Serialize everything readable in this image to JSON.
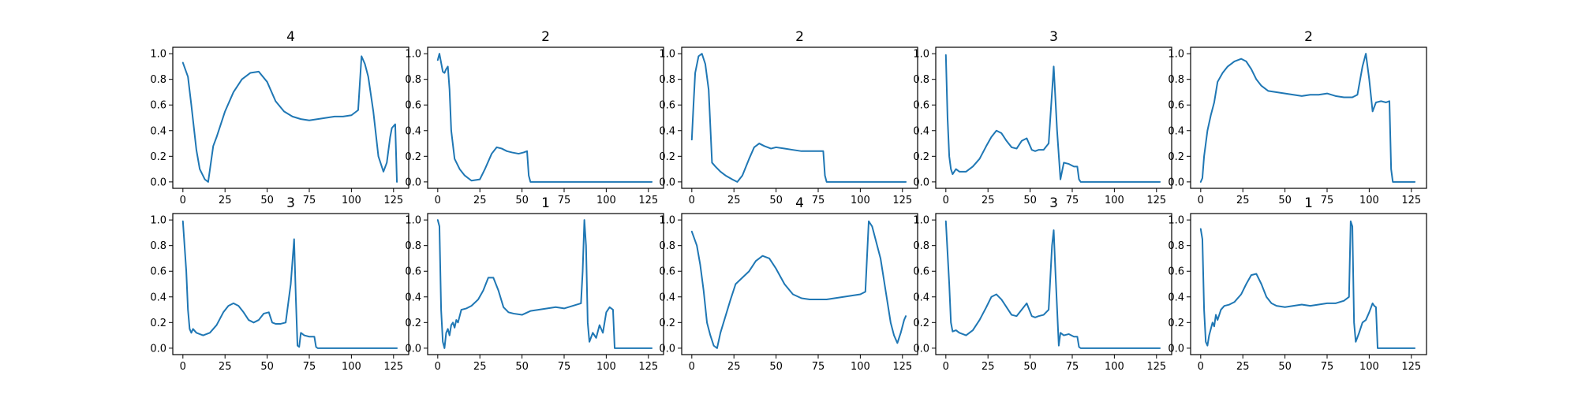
{
  "figure": {
    "background": "#ffffff",
    "line_color": "#1f77b4"
  },
  "chart_data": [
    {
      "type": "line",
      "title": "4",
      "xlim": [
        -6,
        134
      ],
      "ylim": [
        -0.05,
        1.05
      ],
      "xticks": [
        0,
        25,
        50,
        75,
        100,
        125
      ],
      "yticks": [
        0.0,
        0.2,
        0.4,
        0.6,
        0.8,
        1.0
      ],
      "x": [
        0,
        3,
        5,
        8,
        10,
        13,
        15,
        18,
        20,
        25,
        30,
        35,
        40,
        45,
        50,
        55,
        60,
        65,
        70,
        75,
        80,
        85,
        90,
        95,
        100,
        104,
        106,
        108,
        110,
        113,
        116,
        119,
        121,
        123,
        124,
        126,
        127
      ],
      "series": [
        {
          "values": [
            0.93,
            0.82,
            0.6,
            0.25,
            0.1,
            0.02,
            0.0,
            0.28,
            0.35,
            0.55,
            0.7,
            0.8,
            0.85,
            0.86,
            0.78,
            0.63,
            0.55,
            0.51,
            0.49,
            0.48,
            0.49,
            0.5,
            0.51,
            0.51,
            0.52,
            0.56,
            0.98,
            0.92,
            0.82,
            0.55,
            0.2,
            0.08,
            0.15,
            0.35,
            0.42,
            0.45,
            0.0
          ]
        }
      ]
    },
    {
      "type": "line",
      "title": "2",
      "xlim": [
        -6,
        134
      ],
      "ylim": [
        -0.05,
        1.05
      ],
      "xticks": [
        0,
        25,
        50,
        75,
        100,
        125
      ],
      "yticks": [
        0.0,
        0.2,
        0.4,
        0.6,
        0.8,
        1.0
      ],
      "x": [
        0,
        1,
        2,
        3,
        4,
        5,
        6,
        7,
        8,
        10,
        13,
        16,
        20,
        25,
        28,
        32,
        35,
        38,
        41,
        44,
        48,
        51,
        53,
        54,
        55,
        60,
        70,
        80,
        90,
        100,
        110,
        120,
        127
      ],
      "series": [
        {
          "values": [
            0.95,
            1.0,
            0.93,
            0.86,
            0.85,
            0.88,
            0.9,
            0.72,
            0.4,
            0.18,
            0.1,
            0.05,
            0.01,
            0.02,
            0.1,
            0.22,
            0.27,
            0.26,
            0.24,
            0.23,
            0.22,
            0.23,
            0.24,
            0.05,
            0.0,
            0.0,
            0.0,
            0.0,
            0.0,
            0.0,
            0.0,
            0.0,
            0.0
          ]
        }
      ]
    },
    {
      "type": "line",
      "title": "2",
      "xlim": [
        -6,
        134
      ],
      "ylim": [
        -0.05,
        1.05
      ],
      "xticks": [
        0,
        25,
        50,
        75,
        100,
        125
      ],
      "yticks": [
        0.0,
        0.2,
        0.4,
        0.6,
        0.8,
        1.0
      ],
      "x": [
        0,
        1,
        2,
        4,
        6,
        8,
        10,
        12,
        14,
        17,
        20,
        24,
        27,
        30,
        34,
        37,
        40,
        43,
        47,
        50,
        55,
        60,
        65,
        70,
        75,
        78,
        79,
        80,
        90,
        100,
        110,
        120,
        127
      ],
      "series": [
        {
          "values": [
            0.33,
            0.6,
            0.85,
            0.98,
            1.0,
            0.92,
            0.72,
            0.15,
            0.12,
            0.08,
            0.05,
            0.02,
            0.0,
            0.05,
            0.18,
            0.27,
            0.3,
            0.28,
            0.26,
            0.27,
            0.26,
            0.25,
            0.24,
            0.24,
            0.24,
            0.24,
            0.05,
            0.0,
            0.0,
            0.0,
            0.0,
            0.0,
            0.0
          ]
        }
      ]
    },
    {
      "type": "line",
      "title": "3",
      "xlim": [
        -6,
        134
      ],
      "ylim": [
        -0.05,
        1.05
      ],
      "xticks": [
        0,
        25,
        50,
        75,
        100,
        125
      ],
      "yticks": [
        0.0,
        0.2,
        0.4,
        0.6,
        0.8,
        1.0
      ],
      "x": [
        0,
        1,
        2,
        3,
        4,
        6,
        8,
        12,
        16,
        20,
        24,
        27,
        30,
        33,
        36,
        39,
        42,
        45,
        48,
        51,
        53,
        55,
        58,
        61,
        64,
        66,
        68,
        70,
        73,
        76,
        78,
        79,
        80,
        90,
        100,
        110,
        120,
        127
      ],
      "series": [
        {
          "values": [
            0.99,
            0.5,
            0.2,
            0.1,
            0.06,
            0.1,
            0.08,
            0.08,
            0.12,
            0.18,
            0.28,
            0.35,
            0.4,
            0.38,
            0.32,
            0.27,
            0.26,
            0.32,
            0.34,
            0.25,
            0.24,
            0.25,
            0.25,
            0.3,
            0.9,
            0.4,
            0.02,
            0.15,
            0.14,
            0.12,
            0.12,
            0.02,
            0.0,
            0.0,
            0.0,
            0.0,
            0.0,
            0.0
          ]
        }
      ]
    },
    {
      "type": "line",
      "title": "2",
      "xlim": [
        -6,
        134
      ],
      "ylim": [
        -0.05,
        1.05
      ],
      "xticks": [
        0,
        25,
        50,
        75,
        100,
        125
      ],
      "yticks": [
        0.0,
        0.2,
        0.4,
        0.6,
        0.8,
        1.0
      ],
      "x": [
        0,
        1,
        2,
        4,
        6,
        8,
        10,
        13,
        16,
        20,
        24,
        27,
        30,
        33,
        36,
        40,
        45,
        50,
        55,
        60,
        65,
        70,
        75,
        80,
        85,
        90,
        93,
        96,
        98,
        100,
        102,
        104,
        107,
        110,
        112,
        113,
        114,
        120,
        127
      ],
      "series": [
        {
          "values": [
            0.0,
            0.03,
            0.2,
            0.4,
            0.52,
            0.62,
            0.78,
            0.85,
            0.9,
            0.94,
            0.96,
            0.94,
            0.88,
            0.8,
            0.75,
            0.71,
            0.7,
            0.69,
            0.68,
            0.67,
            0.68,
            0.68,
            0.69,
            0.67,
            0.66,
            0.66,
            0.68,
            0.9,
            1.0,
            0.8,
            0.55,
            0.62,
            0.63,
            0.62,
            0.63,
            0.1,
            0.0,
            0.0,
            0.0
          ]
        }
      ]
    },
    {
      "type": "line",
      "title": "3",
      "xlim": [
        -6,
        134
      ],
      "ylim": [
        -0.05,
        1.05
      ],
      "xticks": [
        0,
        25,
        50,
        75,
        100,
        125
      ],
      "yticks": [
        0.0,
        0.2,
        0.4,
        0.6,
        0.8,
        1.0
      ],
      "x": [
        0,
        2,
        3,
        4,
        5,
        6,
        8,
        12,
        16,
        20,
        24,
        27,
        30,
        33,
        36,
        39,
        42,
        45,
        48,
        51,
        53,
        55,
        58,
        61,
        64,
        66,
        67,
        68,
        69,
        70,
        72,
        75,
        78,
        79,
        80,
        90,
        100,
        110,
        120,
        127
      ],
      "series": [
        {
          "values": [
            0.99,
            0.6,
            0.3,
            0.15,
            0.12,
            0.15,
            0.12,
            0.1,
            0.12,
            0.18,
            0.28,
            0.33,
            0.35,
            0.33,
            0.28,
            0.22,
            0.2,
            0.22,
            0.27,
            0.28,
            0.2,
            0.19,
            0.19,
            0.2,
            0.5,
            0.85,
            0.4,
            0.02,
            0.01,
            0.12,
            0.1,
            0.09,
            0.09,
            0.01,
            0.0,
            0.0,
            0.0,
            0.0,
            0.0,
            0.0
          ]
        }
      ]
    },
    {
      "type": "line",
      "title": "1",
      "xlim": [
        -6,
        134
      ],
      "ylim": [
        -0.05,
        1.05
      ],
      "xticks": [
        0,
        25,
        50,
        75,
        100,
        125
      ],
      "yticks": [
        0.0,
        0.2,
        0.4,
        0.6,
        0.8,
        1.0
      ],
      "x": [
        0,
        1,
        2,
        3,
        4,
        5,
        6,
        7,
        8,
        9,
        10,
        11,
        12,
        14,
        17,
        20,
        24,
        27,
        30,
        33,
        36,
        39,
        42,
        45,
        50,
        55,
        60,
        65,
        70,
        75,
        80,
        85,
        86,
        87,
        88,
        89,
        90,
        92,
        94,
        96,
        98,
        100,
        102,
        104,
        105,
        110,
        120,
        127
      ],
      "series": [
        {
          "values": [
            1.0,
            0.95,
            0.3,
            0.05,
            0.0,
            0.12,
            0.15,
            0.1,
            0.18,
            0.2,
            0.16,
            0.22,
            0.2,
            0.3,
            0.31,
            0.33,
            0.38,
            0.45,
            0.55,
            0.55,
            0.45,
            0.32,
            0.28,
            0.27,
            0.26,
            0.29,
            0.3,
            0.31,
            0.32,
            0.31,
            0.33,
            0.35,
            0.6,
            1.0,
            0.8,
            0.2,
            0.05,
            0.12,
            0.08,
            0.18,
            0.12,
            0.28,
            0.32,
            0.3,
            0.0,
            0.0,
            0.0,
            0.0
          ]
        }
      ]
    },
    {
      "type": "line",
      "title": "4",
      "xlim": [
        -6,
        134
      ],
      "ylim": [
        -0.05,
        1.05
      ],
      "xticks": [
        0,
        25,
        50,
        75,
        100,
        125
      ],
      "yticks": [
        0.0,
        0.2,
        0.4,
        0.6,
        0.8,
        1.0
      ],
      "x": [
        0,
        3,
        5,
        7,
        9,
        11,
        13,
        15,
        17,
        20,
        23,
        26,
        30,
        34,
        38,
        42,
        46,
        50,
        55,
        60,
        65,
        70,
        75,
        80,
        85,
        90,
        95,
        100,
        103,
        105,
        107,
        109,
        112,
        115,
        118,
        120,
        122,
        124,
        126,
        127
      ],
      "series": [
        {
          "values": [
            0.91,
            0.8,
            0.65,
            0.45,
            0.2,
            0.1,
            0.02,
            0.0,
            0.12,
            0.25,
            0.38,
            0.5,
            0.55,
            0.6,
            0.68,
            0.72,
            0.7,
            0.62,
            0.5,
            0.42,
            0.39,
            0.38,
            0.38,
            0.38,
            0.39,
            0.4,
            0.41,
            0.42,
            0.44,
            0.99,
            0.95,
            0.85,
            0.7,
            0.45,
            0.2,
            0.1,
            0.04,
            0.12,
            0.22,
            0.25
          ]
        }
      ]
    },
    {
      "type": "line",
      "title": "3",
      "xlim": [
        -6,
        134
      ],
      "ylim": [
        -0.05,
        1.05
      ],
      "xticks": [
        0,
        25,
        50,
        75,
        100,
        125
      ],
      "yticks": [
        0.0,
        0.2,
        0.4,
        0.6,
        0.8,
        1.0
      ],
      "x": [
        0,
        2,
        3,
        4,
        6,
        8,
        12,
        16,
        20,
        24,
        27,
        30,
        33,
        36,
        39,
        42,
        45,
        48,
        51,
        53,
        55,
        58,
        61,
        63,
        64,
        65,
        67,
        68,
        70,
        73,
        76,
        78,
        79,
        80,
        90,
        100,
        110,
        120,
        127
      ],
      "series": [
        {
          "values": [
            0.99,
            0.5,
            0.2,
            0.13,
            0.14,
            0.12,
            0.1,
            0.14,
            0.22,
            0.32,
            0.4,
            0.42,
            0.38,
            0.32,
            0.26,
            0.25,
            0.3,
            0.35,
            0.25,
            0.24,
            0.25,
            0.26,
            0.3,
            0.8,
            0.92,
            0.6,
            0.02,
            0.12,
            0.1,
            0.11,
            0.09,
            0.09,
            0.01,
            0.0,
            0.0,
            0.0,
            0.0,
            0.0,
            0.0
          ]
        }
      ]
    },
    {
      "type": "line",
      "title": "1",
      "xlim": [
        -6,
        134
      ],
      "ylim": [
        -0.05,
        1.05
      ],
      "xticks": [
        0,
        25,
        50,
        75,
        100,
        125
      ],
      "yticks": [
        0.0,
        0.2,
        0.4,
        0.6,
        0.8,
        1.0
      ],
      "x": [
        0,
        1,
        2,
        3,
        4,
        5,
        6,
        7,
        8,
        9,
        10,
        12,
        14,
        17,
        20,
        24,
        27,
        30,
        33,
        36,
        39,
        42,
        45,
        50,
        55,
        60,
        65,
        70,
        75,
        80,
        85,
        88,
        89,
        90,
        91,
        92,
        94,
        96,
        98,
        100,
        102,
        103,
        104,
        105,
        110,
        120,
        127
      ],
      "series": [
        {
          "values": [
            0.93,
            0.85,
            0.3,
            0.05,
            0.02,
            0.1,
            0.15,
            0.2,
            0.17,
            0.26,
            0.22,
            0.3,
            0.33,
            0.34,
            0.36,
            0.42,
            0.5,
            0.57,
            0.58,
            0.5,
            0.4,
            0.35,
            0.33,
            0.32,
            0.33,
            0.34,
            0.33,
            0.34,
            0.35,
            0.35,
            0.37,
            0.4,
            0.99,
            0.95,
            0.2,
            0.05,
            0.12,
            0.2,
            0.22,
            0.28,
            0.35,
            0.33,
            0.32,
            0.0,
            0.0,
            0.0,
            0.0
          ]
        }
      ]
    }
  ]
}
